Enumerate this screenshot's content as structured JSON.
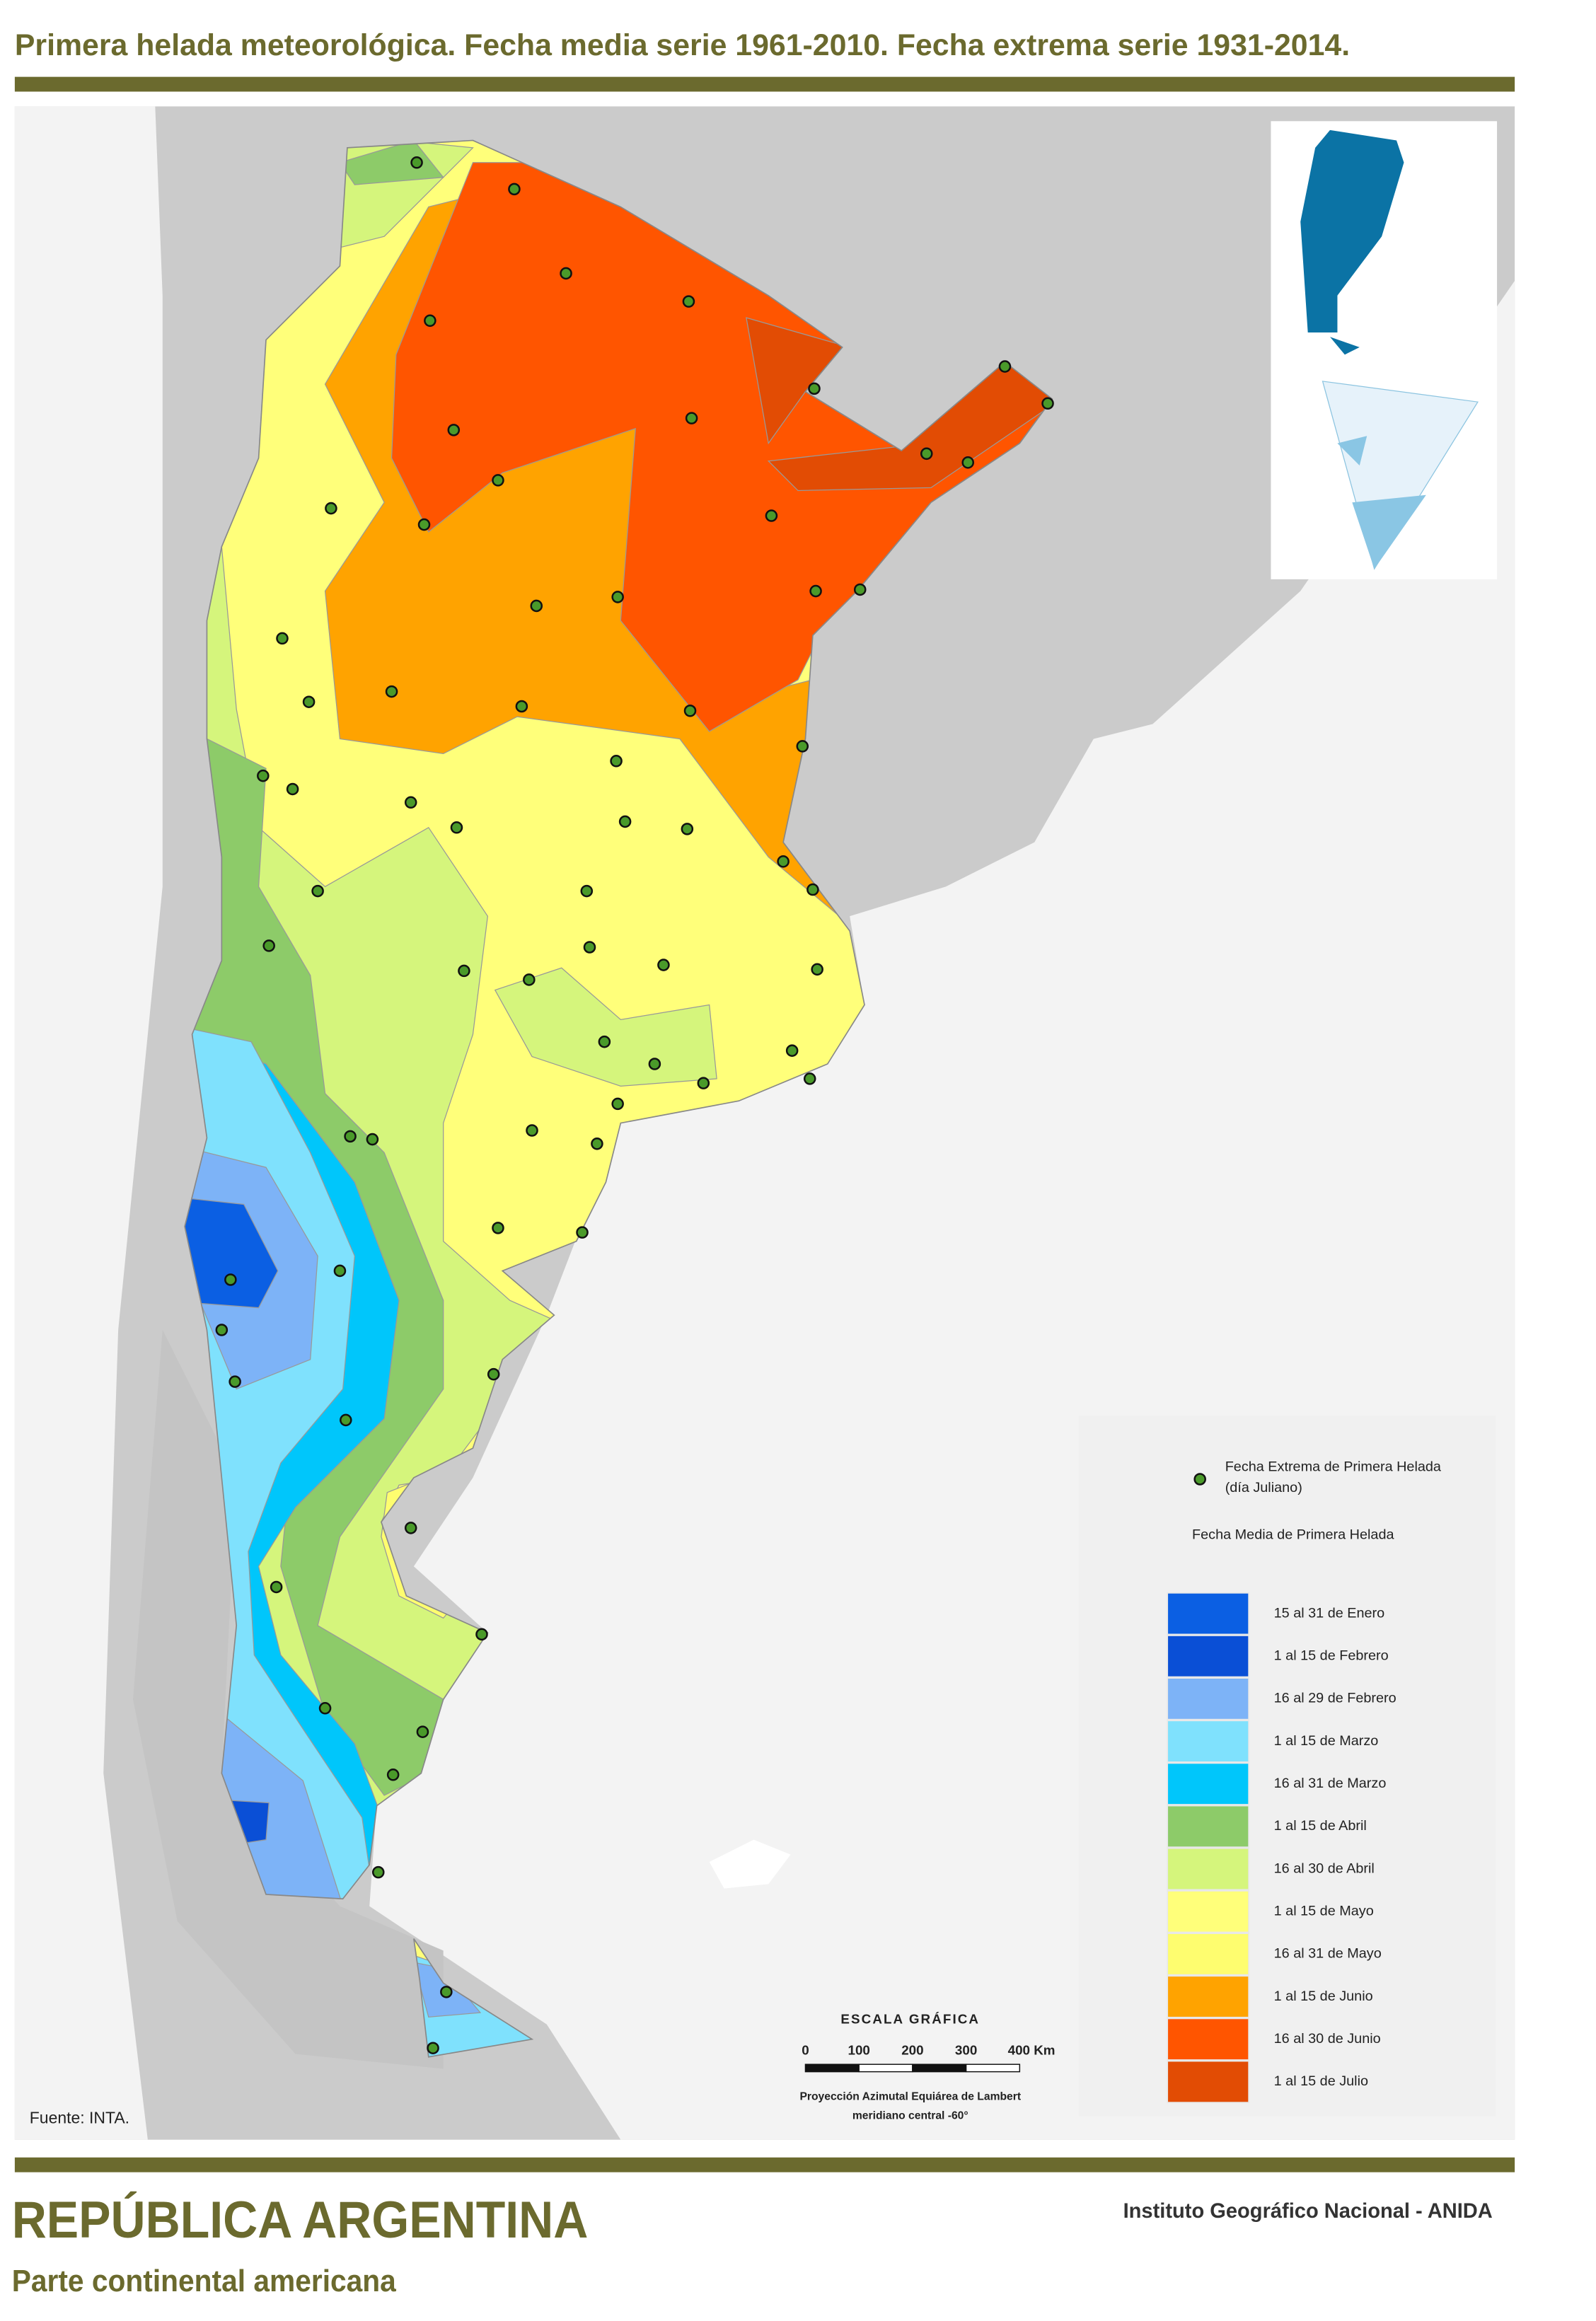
{
  "title": "Primera helada meteorológica. Fecha media serie 1961-2010. Fecha extrema serie 1931-2014.",
  "legend": {
    "dot_label": [
      "Fecha Extrema de Primera Helada",
      "(día Juliano)"
    ],
    "heading": "Fecha Media de Primera Helada",
    "items": [
      {
        "label": "15 al 31 de Enero",
        "color": "#0b5fe3"
      },
      {
        "label": "1 al 15 de Febrero",
        "color": "#0a4fd6"
      },
      {
        "label": "16 al 29 de Febrero",
        "color": "#7db3f7"
      },
      {
        "label": "1 al 15 de Marzo",
        "color": "#7fe1fd"
      },
      {
        "label": "16 al 31 de Marzo",
        "color": "#00c6fb"
      },
      {
        "label": "1 al 15 de Abril",
        "color": "#8dcb69"
      },
      {
        "label": "16 al 30 de Abril",
        "color": "#d5f57c"
      },
      {
        "label": "1 al 15 de Mayo",
        "color": "#ffff7a"
      },
      {
        "label": "16 al 31 de Mayo",
        "color": "#fefd6f"
      },
      {
        "label": "1 al 15 de Junio",
        "color": "#ffa300"
      },
      {
        "label": "16 al 30 de Junio",
        "color": "#ff5500"
      },
      {
        "label": "1 al 15 de Julio",
        "color": "#e24c04"
      }
    ]
  },
  "scale": {
    "title": "ESCALA GRÁFICA",
    "ticks": [
      "0",
      "100",
      "200",
      "300",
      "400 Km"
    ],
    "projection": [
      "Proyección Azimutal Equiárea de Lambert",
      "meridiano central -60°"
    ]
  },
  "source": "Fuente: INTA.",
  "footer": {
    "country": "REPÚBLICA ARGENTINA",
    "subtitle": "Parte continental americana",
    "institute": "Instituto Geográfico Nacional - ANIDA"
  }
}
